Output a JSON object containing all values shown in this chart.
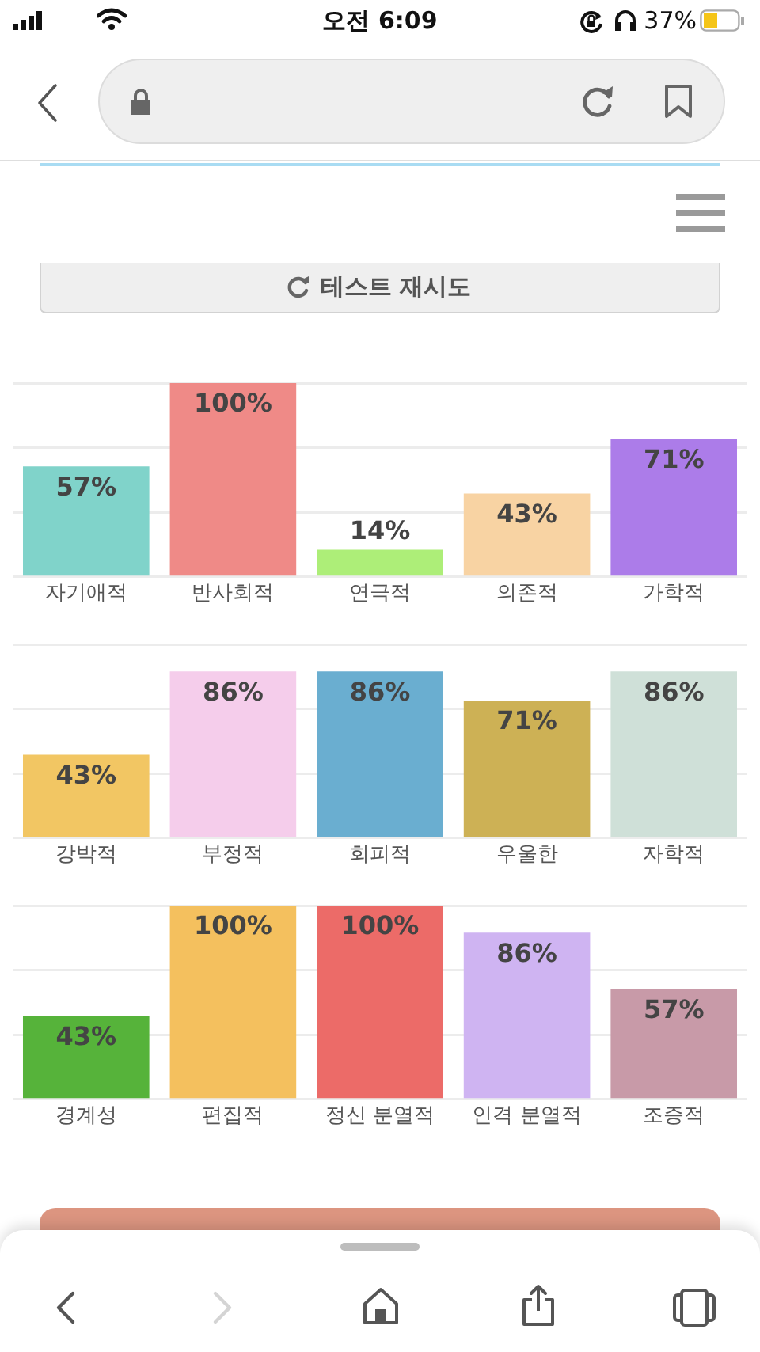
{
  "chart_data": [
    {
      "type": "bar",
      "categories": [
        "자기애적",
        "반사회적",
        "연극적",
        "의존적",
        "가학적"
      ],
      "values": [
        57,
        100,
        14,
        43,
        71
      ],
      "colors": [
        "#80d3ca",
        "#ef8a87",
        "#adee78",
        "#f8d3a3",
        "#ac7ce9"
      ],
      "value_labels": [
        "57%",
        "100%",
        "14%",
        "43%",
        "71%"
      ],
      "ylim": [
        0,
        100
      ],
      "yticks": [
        {
          "value": 0,
          "label": null
        },
        {
          "value": 33.3,
          "label": null
        },
        {
          "value": 66.7,
          "label": null
        },
        {
          "value": 100,
          "label": null
        }
      ],
      "grid": "y",
      "tick_labels": "x",
      "annotations": [
        "오전 6:09",
        "37%",
        "테스트 재시도"
      ]
    },
    {
      "type": "bar",
      "categories": [
        "강박적",
        "부정적",
        "회피적",
        "우울한",
        "자학적"
      ],
      "values": [
        43,
        86,
        86,
        71,
        86
      ],
      "colors": [
        "#f2c663",
        "#f5cdeb",
        "#6aaed0",
        "#cdb155",
        "#cfe0d8"
      ],
      "value_labels": [
        "43%",
        "86%",
        "86%",
        "71%",
        "86%"
      ],
      "ylim": [
        0,
        100
      ],
      "yticks": [
        {
          "value": 0,
          "label": null
        },
        {
          "value": 33.3,
          "label": null
        },
        {
          "value": 66.7,
          "label": null
        },
        {
          "value": 100,
          "label": null
        }
      ],
      "grid": "y",
      "tick_labels": "x"
    },
    {
      "type": "bar",
      "categories": [
        "경계성",
        "편집적",
        "정신 분열적",
        "인격 분열적",
        "조증적"
      ],
      "values": [
        43,
        100,
        100,
        86,
        57
      ],
      "colors": [
        "#56b33a",
        "#f4c05e",
        "#ec6b68",
        "#cfb4f2",
        "#c89aa8"
      ],
      "value_labels": [
        "43%",
        "100%",
        "100%",
        "86%",
        "57%"
      ],
      "ylim": [
        0,
        100
      ],
      "yticks": [
        {
          "value": 0,
          "label": null
        },
        {
          "value": 33.3,
          "label": null
        },
        {
          "value": 66.7,
          "label": null
        },
        {
          "value": 100,
          "label": null
        }
      ],
      "grid": "y",
      "tick_labels": "x"
    }
  ]
}
